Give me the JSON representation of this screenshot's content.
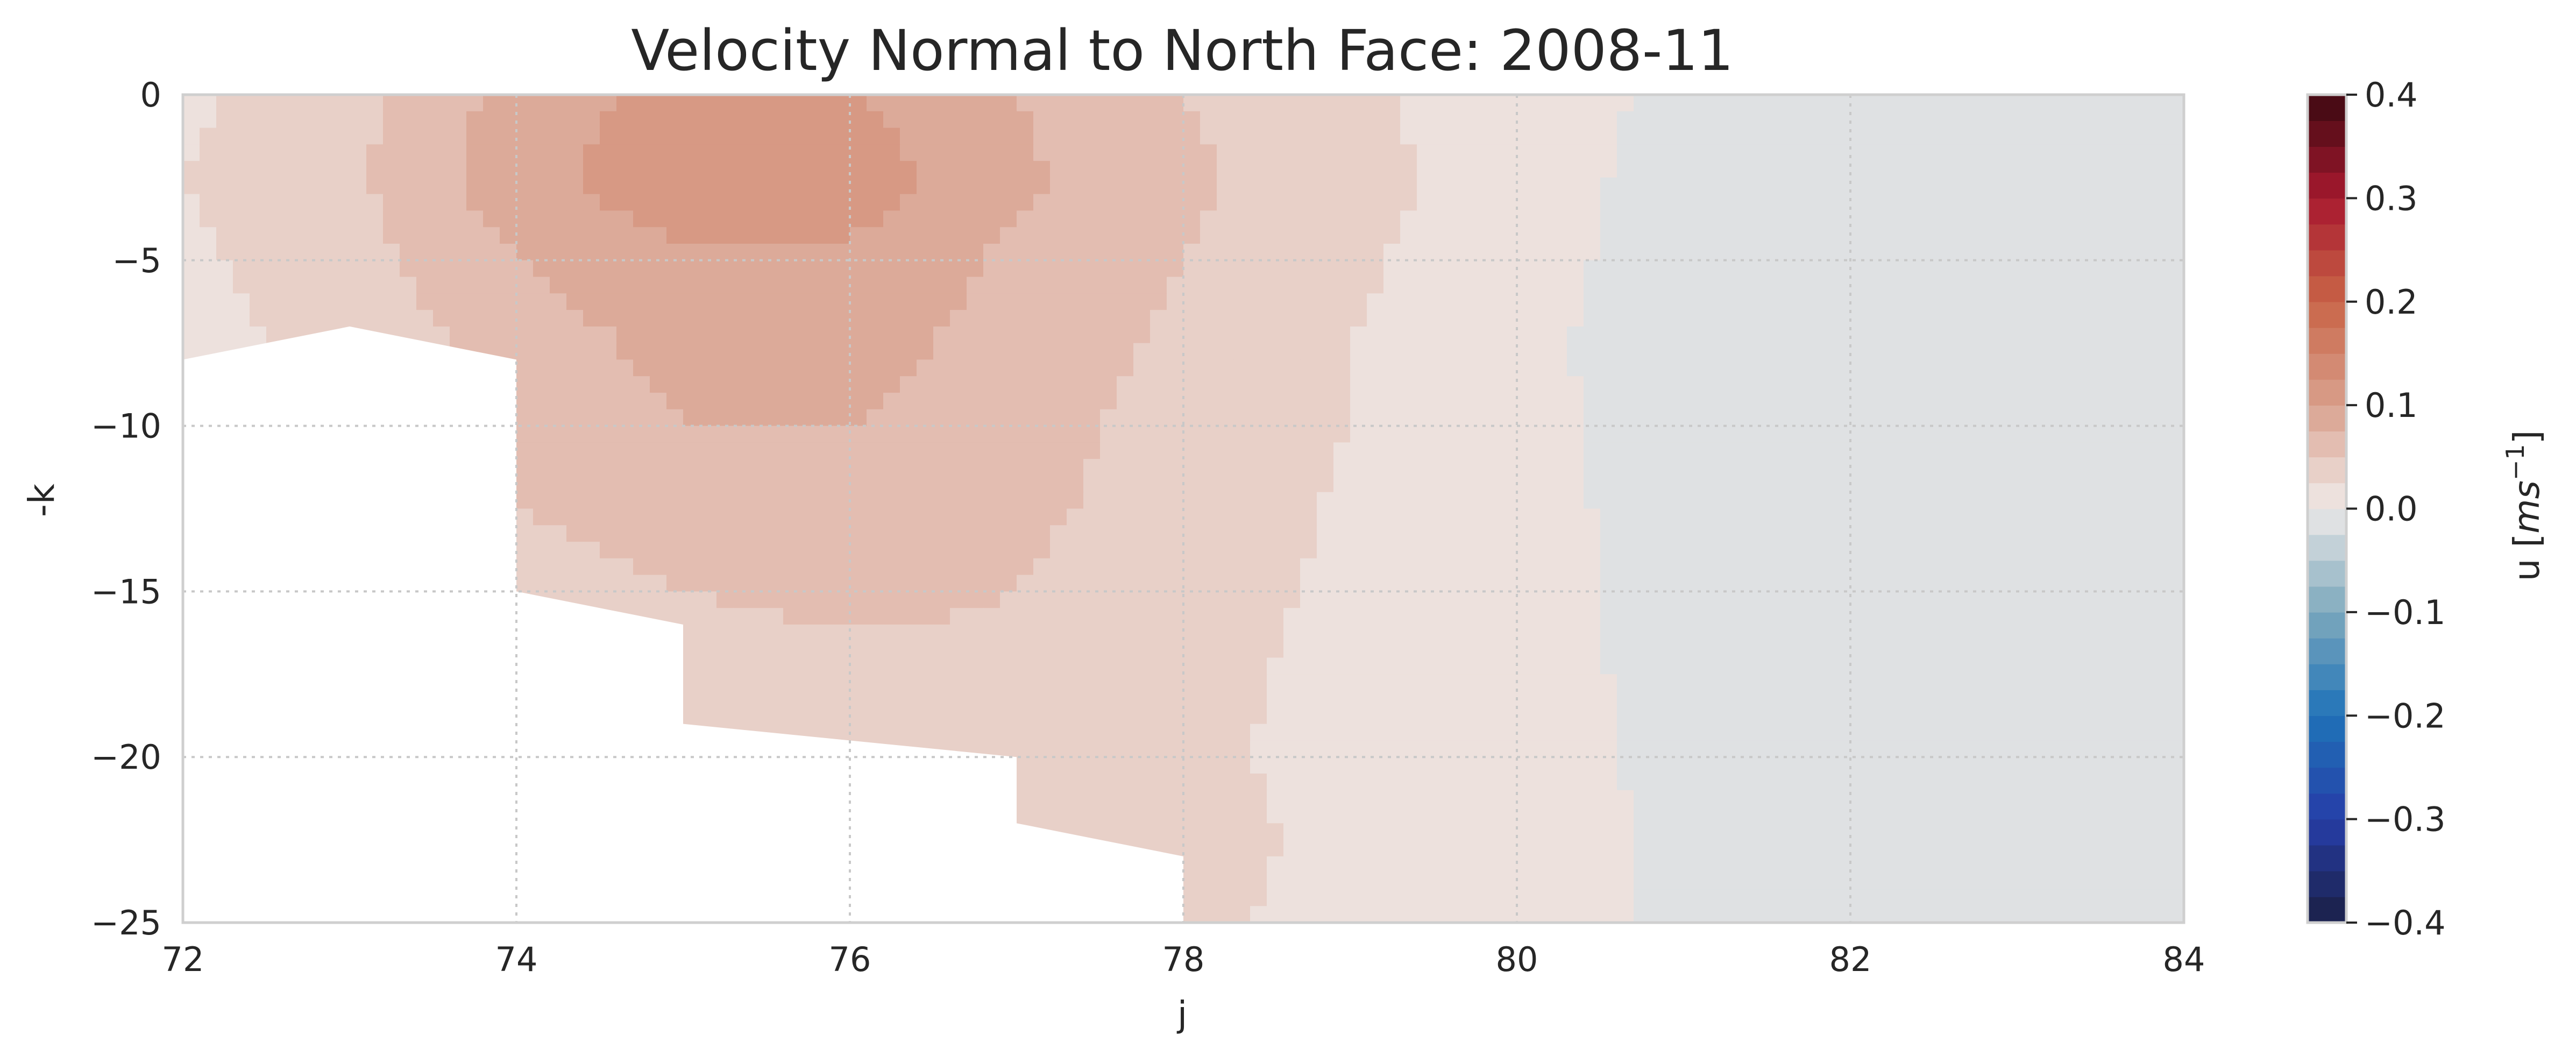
{
  "chart_data": {
    "type": "heatmap",
    "subtype": "filled-contour",
    "title": "Velocity Normal to North Face: 2008-11",
    "xlabel": "j",
    "ylabel": "-k",
    "xlim": [
      72,
      84
    ],
    "ylim": [
      -25,
      0
    ],
    "x_ticks": [
      72,
      74,
      76,
      78,
      80,
      82,
      84
    ],
    "y_ticks": [
      0,
      -5,
      -10,
      -15,
      -20,
      -25
    ],
    "grid": true,
    "colorbar": {
      "label": "u [ms⁻¹]",
      "label_main": "u [",
      "label_unit": "ms",
      "label_exp": "−1",
      "label_close": "]",
      "range": [
        -0.4,
        0.4
      ],
      "ticks": [
        0.4,
        0.3,
        0.2,
        0.1,
        0.0,
        -0.1,
        -0.2,
        -0.3,
        -0.4
      ],
      "tick_labels": [
        "0.4",
        "0.3",
        "0.2",
        "0.1",
        "0.0",
        "−0.1",
        "−0.2",
        "−0.3",
        "−0.4"
      ],
      "colormap": "balance",
      "stops": [
        {
          "v": -0.4,
          "c": "#1b1f44"
        },
        {
          "v": -0.3,
          "c": "#263ea8"
        },
        {
          "v": -0.2,
          "c": "#1f72b8"
        },
        {
          "v": -0.1,
          "c": "#7da9bd"
        },
        {
          "v": -0.02,
          "c": "#d6dce0"
        },
        {
          "v": 0.0,
          "c": "#efeae8"
        },
        {
          "v": 0.05,
          "c": "#e6c7bd"
        },
        {
          "v": 0.1,
          "c": "#d9a08d"
        },
        {
          "v": 0.2,
          "c": "#c96547"
        },
        {
          "v": 0.3,
          "c": "#a8192f"
        },
        {
          "v": 0.4,
          "c": "#3c0911"
        }
      ]
    },
    "land_mask": {
      "color": "#ffffff",
      "boundary": [
        [
          72,
          -8
        ],
        [
          73,
          -7
        ],
        [
          74,
          -8
        ],
        [
          74,
          -15
        ],
        [
          75,
          -16
        ],
        [
          75,
          -19
        ],
        [
          77,
          -20
        ],
        [
          77,
          -22
        ],
        [
          78,
          -23
        ],
        [
          78,
          -25
        ],
        [
          72,
          -25
        ]
      ]
    },
    "field_grid": {
      "j": [
        72,
        73,
        74,
        75,
        76,
        77,
        78,
        79,
        80,
        81,
        82,
        83,
        84
      ],
      "k": [
        0,
        -2.5,
        -5,
        -7.5,
        -10,
        -12.5,
        -15,
        -17.5,
        -20,
        -22.5,
        -25
      ],
      "u": [
        [
          0.02,
          0.04,
          0.085,
          0.11,
          0.1,
          0.075,
          0.05,
          0.03,
          0.01,
          -0.005,
          -0.01,
          -0.005,
          0.0
        ],
        [
          0.025,
          0.045,
          0.09,
          0.12,
          0.115,
          0.08,
          0.055,
          0.035,
          0.01,
          -0.008,
          -0.015,
          -0.015,
          -0.01
        ],
        [
          0.02,
          0.04,
          0.075,
          0.095,
          0.095,
          0.07,
          0.05,
          0.03,
          0.008,
          -0.01,
          -0.02,
          -0.02,
          -0.015
        ],
        [
          0.015,
          0.035,
          0.06,
          0.085,
          0.085,
          0.065,
          0.045,
          0.025,
          0.005,
          -0.01,
          -0.018,
          -0.02,
          -0.018
        ],
        [
          0.015,
          0.03,
          0.055,
          0.075,
          0.075,
          0.06,
          0.04,
          0.025,
          0.005,
          -0.008,
          -0.015,
          -0.018,
          -0.018
        ],
        [
          0.015,
          0.03,
          0.05,
          0.06,
          0.065,
          0.055,
          0.04,
          0.022,
          0.005,
          -0.006,
          -0.012,
          -0.015,
          -0.018
        ],
        [
          0.015,
          0.025,
          0.04,
          0.05,
          0.055,
          0.05,
          0.035,
          0.02,
          0.005,
          -0.005,
          -0.01,
          -0.012,
          -0.015
        ],
        [
          0.015,
          0.025,
          0.035,
          0.04,
          0.045,
          0.045,
          0.03,
          0.02,
          0.005,
          -0.004,
          -0.008,
          -0.01,
          -0.012
        ],
        [
          0.015,
          0.02,
          0.03,
          0.035,
          0.038,
          0.038,
          0.03,
          0.018,
          0.005,
          -0.003,
          -0.006,
          -0.008,
          -0.01
        ],
        [
          0.015,
          0.02,
          0.03,
          0.035,
          0.035,
          0.035,
          0.035,
          0.018,
          0.005,
          -0.002,
          -0.005,
          -0.006,
          -0.008
        ],
        [
          0.015,
          0.02,
          0.03,
          0.035,
          0.035,
          0.035,
          0.03,
          0.018,
          0.005,
          -0.002,
          -0.004,
          -0.005,
          -0.006
        ]
      ]
    }
  }
}
